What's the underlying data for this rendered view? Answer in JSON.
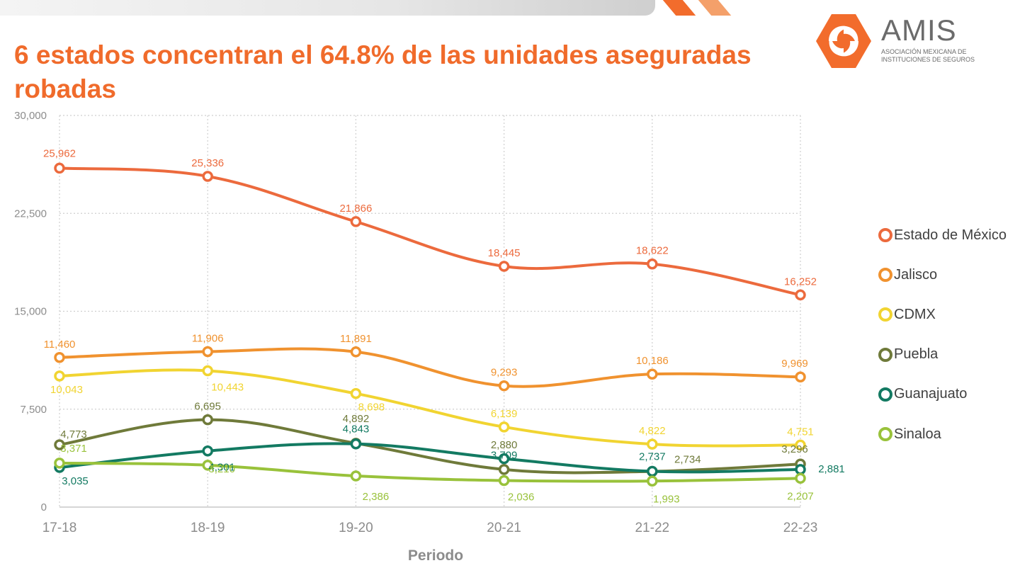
{
  "title": "6 estados concentran el 64.8% de las unidades aseguradas robadas",
  "logo": {
    "name": "AMIS",
    "subtitle_line1": "ASOCIACIÓN MEXICANA DE",
    "subtitle_line2": "INSTITUCIONES DE SEGUROS",
    "colors": {
      "primary": "#f26c2c"
    }
  },
  "chart_data": {
    "type": "line",
    "title": "6 estados concentran el 64.8% de las unidades aseguradas robadas",
    "xlabel": "Periodo",
    "ylabel": "",
    "categories": [
      "17-18",
      "18-19",
      "19-20",
      "20-21",
      "21-22",
      "22-23"
    ],
    "ylim": [
      0,
      30000
    ],
    "yticks": [
      0,
      7500,
      15000,
      22500,
      30000
    ],
    "ytick_labels": [
      "0",
      "7,500",
      "15,000",
      "22,500",
      "30,000"
    ],
    "grid": true,
    "legend_position": "right",
    "series": [
      {
        "name": "Estado de México",
        "color": "#ec6a3d",
        "values": [
          25962,
          25336,
          21866,
          18445,
          18622,
          16252
        ],
        "labels": [
          "25,962",
          "25,336",
          "21,866",
          "18,445",
          "18,622",
          "16,252"
        ]
      },
      {
        "name": "Jalisco",
        "color": "#f0922f",
        "values": [
          11460,
          11906,
          11891,
          9293,
          10186,
          9969
        ],
        "labels": [
          "11,460",
          "11,906",
          "11,891",
          "9,293",
          "10,186",
          "9,969"
        ]
      },
      {
        "name": "CDMX",
        "color": "#f1d431",
        "values": [
          10043,
          10443,
          8698,
          6139,
          4822,
          4751
        ],
        "labels": [
          "10,043",
          "10,443",
          "8,698",
          "6,139",
          "4,822",
          "4,751"
        ]
      },
      {
        "name": "Puebla",
        "color": "#6f7a3a",
        "values": [
          4773,
          6695,
          4892,
          2880,
          2734,
          3296
        ],
        "labels": [
          "4,773",
          "6,695",
          "4,892",
          "2,880",
          "2,734",
          "3,296"
        ]
      },
      {
        "name": "Guanajuato",
        "color": "#137a62",
        "values": [
          3035,
          4301,
          4843,
          3709,
          2737,
          2881
        ],
        "labels": [
          "3,035",
          "4,301",
          "4,843",
          "3,709",
          "2,737",
          "2,881"
        ]
      },
      {
        "name": "Sinaloa",
        "color": "#99c23b",
        "values": [
          3371,
          3210,
          2386,
          2036,
          1993,
          2207
        ],
        "labels": [
          "3,371",
          "3,210",
          "2,386",
          "2,036",
          "1,993",
          "2,207"
        ]
      }
    ]
  }
}
